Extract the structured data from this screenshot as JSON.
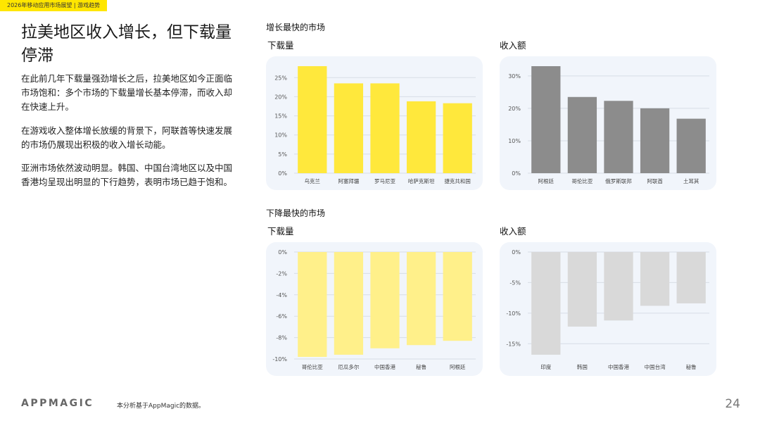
{
  "header": {
    "tag": "2026年移动应用市场展望 | 游戏趋势"
  },
  "main": {
    "headline": "拉美地区收入增长，但下载量停滞",
    "paragraphs": [
      "在此前几年下载量强劲增长之后，拉美地区如今正面临市场饱和：多个市场的下载量增长基本停滞，而收入却在快速上升。",
      "在游戏收入整体增长放缓的背景下，阿联酋等快速发展的市场仍展现出积极的收入增长动能。",
      "亚洲市场依然波动明显。韩国、中国台湾地区以及中国香港均呈现出明显的下行趋势，表明市场已趋于饱和。"
    ]
  },
  "sections": {
    "growth_title": "增长最快的市场",
    "decline_title": "下降最快的市场"
  },
  "footer": {
    "logo": "APPMAGIC",
    "note": "本分析基于AppMagic的数据。",
    "page": "24"
  },
  "colors": {
    "accent": "#ffe600",
    "growth_downloads": "#ffe83c",
    "growth_revenue": "#8c8c8c",
    "decline_downloads": "#fff08a",
    "decline_revenue": "#d9d9d9",
    "card_bg": "#f1f5fb"
  },
  "chart_data": [
    {
      "type": "bar",
      "title": "下载量",
      "categories": [
        "乌克兰",
        "阿塞拜疆",
        "罗马尼亚",
        "哈萨克斯坦",
        "捷克共和国"
      ],
      "values": [
        28,
        23.5,
        23.5,
        18.8,
        18.3
      ],
      "ylim": [
        0,
        28
      ],
      "yticks": [
        0,
        5,
        10,
        15,
        20,
        25
      ],
      "tick_suffix": "%",
      "grid": true
    },
    {
      "type": "bar",
      "title": "收入额",
      "categories": [
        "阿根廷",
        "哥伦比亚",
        "俄罗斯联邦",
        "阿联酋",
        "土耳其"
      ],
      "values": [
        33,
        23.5,
        22.3,
        20,
        16.8
      ],
      "ylim": [
        0,
        33
      ],
      "yticks": [
        0,
        10,
        20,
        30
      ],
      "tick_suffix": "%",
      "grid": true
    },
    {
      "type": "bar",
      "title": "下载量",
      "categories": [
        "哥伦比亚",
        "厄瓜多尔",
        "中国香港",
        "秘鲁",
        "阿根廷"
      ],
      "values": [
        -9.8,
        -9.6,
        -9.0,
        -8.7,
        -8.3
      ],
      "ylim": [
        -10,
        0
      ],
      "yticks": [
        0,
        -2,
        -4,
        -6,
        -8,
        -10
      ],
      "tick_suffix": "%",
      "grid": true
    },
    {
      "type": "bar",
      "title": "收入额",
      "categories": [
        "印度",
        "韩国",
        "中国香港",
        "中国台湾",
        "秘鲁"
      ],
      "values": [
        -16.8,
        -12.2,
        -11.2,
        -8.8,
        -8.4
      ],
      "ylim": [
        -17.5,
        0
      ],
      "yticks": [
        0,
        -5,
        -10,
        -15
      ],
      "tick_suffix": "%",
      "grid": true
    }
  ]
}
